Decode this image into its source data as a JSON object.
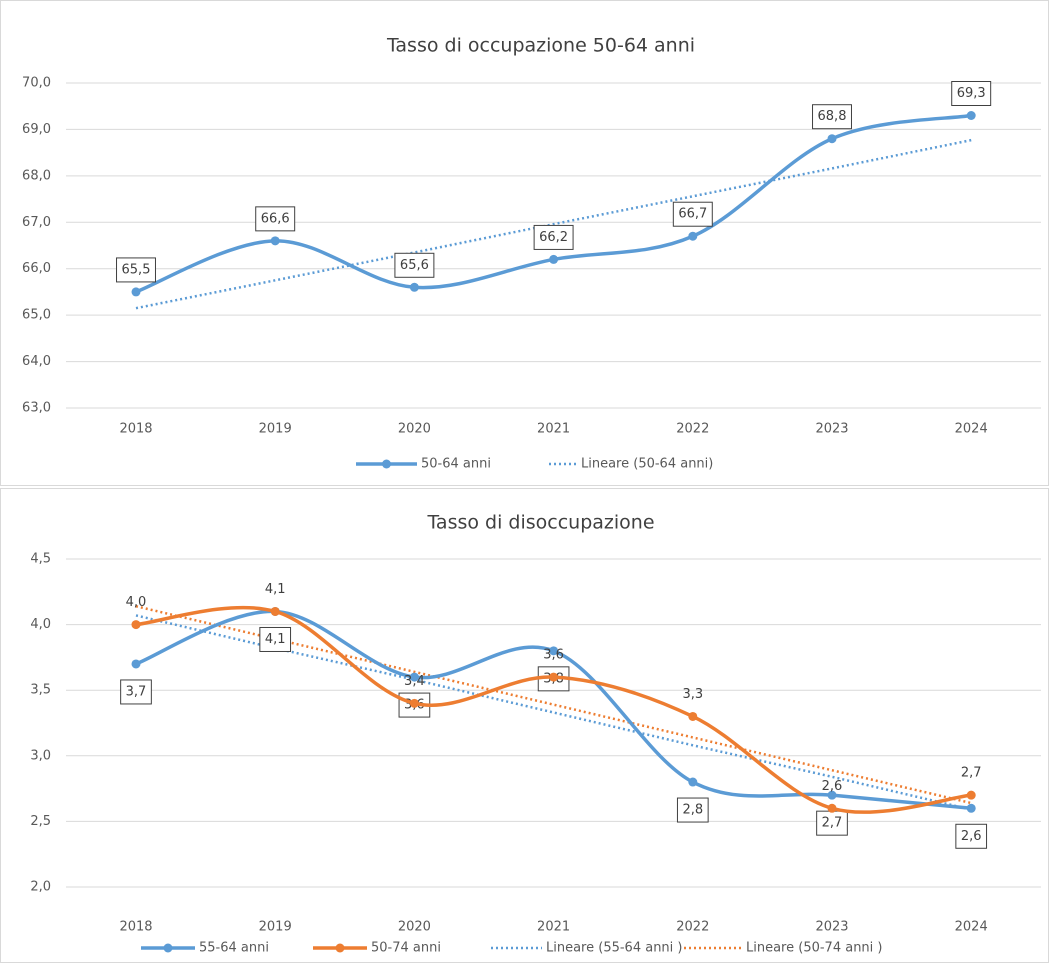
{
  "chart_data": [
    {
      "type": "line",
      "title": "Tasso di occupazione 50-64 anni",
      "categories": [
        "2018",
        "2019",
        "2020",
        "2021",
        "2022",
        "2023",
        "2024"
      ],
      "series": [
        {
          "name": "50-64 anni",
          "color": "#5b9bd5",
          "line_style": "solid",
          "markers": true,
          "label_box": true,
          "label_position": "above",
          "values": [
            65.5,
            66.6,
            65.6,
            66.2,
            66.7,
            68.8,
            69.3
          ],
          "value_labels": [
            "65,5",
            "66,6",
            "65,6",
            "66,2",
            "66,7",
            "68,8",
            "69,3"
          ]
        },
        {
          "name": "Lineare (50-64 anni)",
          "color": "#5b9bd5",
          "line_style": "dotted",
          "markers": false,
          "values": [
            65.15,
            65.75,
            66.35,
            66.96,
            67.56,
            68.16,
            68.77
          ]
        }
      ],
      "ylim": [
        63,
        70
      ],
      "yticks": [
        {
          "value": 63,
          "label": "63,0"
        },
        {
          "value": 64,
          "label": "64,0"
        },
        {
          "value": 65,
          "label": "65,0"
        },
        {
          "value": 66,
          "label": "66,0"
        },
        {
          "value": 67,
          "label": "67,0"
        },
        {
          "value": 68,
          "label": "68,0"
        },
        {
          "value": 69,
          "label": "69,0"
        },
        {
          "value": 70,
          "label": "70,0"
        }
      ],
      "grid": true,
      "legend": "bottom"
    },
    {
      "type": "line",
      "title": "Tasso di disoccupazione",
      "categories": [
        "2018",
        "2019",
        "2020",
        "2021",
        "2022",
        "2023",
        "2024"
      ],
      "series": [
        {
          "name": "55-64 anni",
          "color": "#5b9bd5",
          "line_style": "solid",
          "markers": true,
          "label_box": true,
          "label_position": "below",
          "values": [
            3.7,
            4.1,
            3.6,
            3.8,
            2.8,
            2.7,
            2.6
          ],
          "value_labels": [
            "3,7",
            "4,1",
            "3,6",
            "3,8",
            "2,8",
            "2,7",
            "2,6"
          ]
        },
        {
          "name": "50-74 anni",
          "color": "#ed7d31",
          "line_style": "solid",
          "markers": true,
          "label_box": false,
          "label_position": "above",
          "values": [
            4.0,
            4.1,
            3.4,
            3.6,
            3.3,
            2.6,
            2.7
          ],
          "value_labels": [
            "4,0",
            "4,1",
            "3,4",
            "3,6",
            "3,3",
            "2,6",
            "2,7"
          ]
        },
        {
          "name": "Lineare (55-64 anni )",
          "color": "#5b9bd5",
          "line_style": "dotted",
          "markers": false,
          "values": [
            4.07,
            3.82,
            3.58,
            3.33,
            3.08,
            2.84,
            2.59
          ]
        },
        {
          "name": "Lineare (50-74 anni )",
          "color": "#ed7d31",
          "line_style": "dotted",
          "markers": false,
          "values": [
            4.14,
            3.89,
            3.64,
            3.39,
            3.14,
            2.89,
            2.64
          ]
        }
      ],
      "ylim": [
        2,
        4.5
      ],
      "yticks": [
        {
          "value": 2,
          "label": "2,0"
        },
        {
          "value": 2.5,
          "label": "2,5"
        },
        {
          "value": 3,
          "label": "3,0"
        },
        {
          "value": 3.5,
          "label": "3,5"
        },
        {
          "value": 4,
          "label": "4,0"
        },
        {
          "value": 4.5,
          "label": "4,5"
        }
      ],
      "grid": true,
      "legend": "bottom"
    }
  ]
}
